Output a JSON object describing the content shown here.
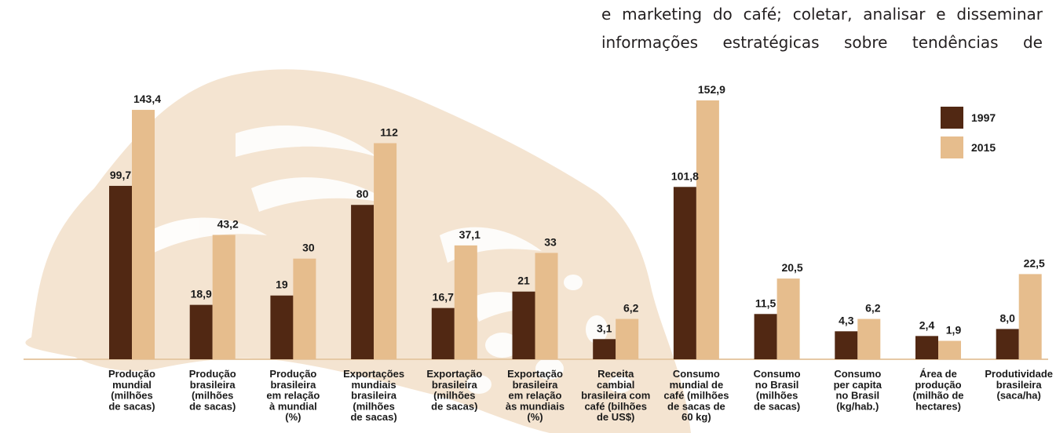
{
  "intro_text": {
    "line1": "e marketing do café; coletar, analisar e disseminar",
    "line2": "informações estratégicas sobre tendências de"
  },
  "colors": {
    "series_1997": "#512813",
    "series_2015": "#e6bd8d",
    "background_art": "#f4e4d1",
    "axis_line": "#e6c9a5"
  },
  "chart_data": {
    "type": "bar",
    "categories": [
      [
        "Produção",
        "mundial",
        "(milhões",
        "de sacas)"
      ],
      [
        "Produção",
        "brasileira",
        "(milhões",
        "de sacas)"
      ],
      [
        "Produção",
        "brasileira",
        "em relação",
        "à mundial",
        "(%)"
      ],
      [
        "Exportações",
        "mundiais",
        "brasileira",
        "(milhões",
        "de sacas)"
      ],
      [
        "Exportação",
        "brasileira",
        "(milhões",
        "de sacas)"
      ],
      [
        "Exportação",
        "brasileira",
        "em relação",
        "às mundiais",
        "(%)"
      ],
      [
        "Receita",
        "cambial",
        "brasileira com",
        "café (bilhões",
        "de US$)"
      ],
      [
        "Consumo",
        "mundial de",
        "café (milhões",
        "de sacas de",
        "60 kg)"
      ],
      [
        "Consumo",
        "no Brasil",
        "(milhões",
        "de sacas)"
      ],
      [
        "Consumo",
        "per capita",
        "no Brasil",
        "(kg/hab.)"
      ],
      [
        "Área de",
        "produção",
        "(milhão de",
        "hectares)"
      ],
      [
        "Produtividade",
        "brasileira",
        "(saca/ha)"
      ]
    ],
    "series": [
      {
        "name": "1997",
        "values": [
          99.7,
          18.9,
          19,
          80,
          16.7,
          21,
          3.1,
          101.8,
          11.5,
          4.3,
          2.4,
          8.0
        ],
        "labels": [
          "99,7",
          "18,9",
          "19",
          "80",
          "16,7",
          "21",
          "3,1",
          "101,8",
          "11,5",
          "4,3",
          "2,4",
          "8,0"
        ]
      },
      {
        "name": "2015",
        "values": [
          143.4,
          43.2,
          30,
          112,
          37.1,
          33,
          6.2,
          152.9,
          20.5,
          6.2,
          1.9,
          22.5
        ],
        "labels": [
          "143,4",
          "43,2",
          "30",
          "112",
          "37,1",
          "33",
          "6,2",
          "152,9",
          "20,5",
          "6,2",
          "1,9",
          "22,5"
        ]
      }
    ],
    "legend": {
      "position": "top-right",
      "entries": [
        "1997",
        "2015"
      ]
    },
    "grid": false,
    "note": "independent scales per category"
  }
}
